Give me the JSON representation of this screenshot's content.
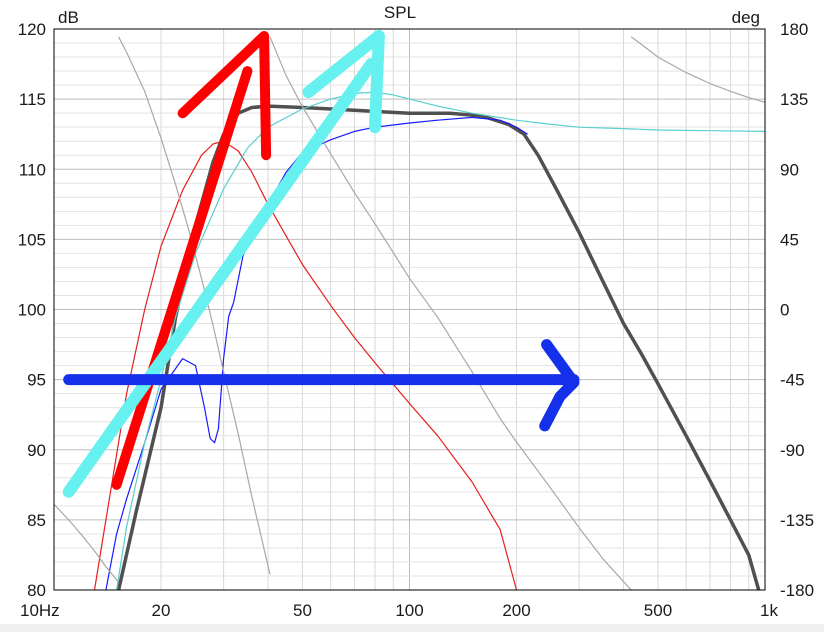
{
  "chart_data": {
    "type": "line",
    "title": "SPL",
    "ylabel": "dB",
    "y2label": "deg",
    "x_scale": "log",
    "xlim": [
      10,
      1000
    ],
    "ylim": [
      80,
      120
    ],
    "y2lim": [
      -180,
      180
    ],
    "grid": true,
    "x_ticks": [
      {
        "value": 10,
        "label": "10Hz"
      },
      {
        "value": 20,
        "label": "20"
      },
      {
        "value": 50,
        "label": "50"
      },
      {
        "value": 100,
        "label": "100"
      },
      {
        "value": 200,
        "label": "200"
      },
      {
        "value": 500,
        "label": "500"
      },
      {
        "value": 1000,
        "label": "1k"
      }
    ],
    "y_ticks": [
      80,
      85,
      90,
      95,
      100,
      105,
      110,
      115,
      120
    ],
    "y2_ticks": [
      -180,
      -135,
      -90,
      -45,
      0,
      45,
      90,
      135,
      180
    ],
    "series": [
      {
        "color": "#505050",
        "width": 3.5,
        "axis": "y",
        "x": [
          15.2,
          17,
          20,
          22,
          25,
          28,
          30,
          33,
          36,
          40,
          50,
          70,
          100,
          130,
          160,
          190,
          210,
          230,
          260,
          300,
          350,
          400,
          450,
          500,
          600,
          700,
          800,
          900,
          960
        ],
        "y": [
          80,
          85.5,
          93,
          99.5,
          106,
          110.5,
          112.5,
          114,
          114.4,
          114.5,
          114.4,
          114.2,
          114,
          114,
          113.8,
          113.2,
          112.5,
          111,
          108.5,
          105.5,
          102,
          99,
          96.8,
          94.7,
          91,
          87.8,
          85,
          82.5,
          80
        ]
      },
      {
        "color": "#e61e1e",
        "width": 1.2,
        "axis": "y",
        "x": [
          13,
          14,
          16,
          18,
          20,
          23,
          26,
          28,
          30,
          33,
          36,
          40,
          50,
          60,
          70,
          80,
          100,
          120,
          150,
          180,
          200
        ],
        "y": [
          80,
          85,
          94,
          100,
          104.5,
          108.5,
          111,
          111.8,
          112,
          111.3,
          109.8,
          107.5,
          103.2,
          100.3,
          98,
          96.2,
          93.3,
          91,
          87.7,
          84.3,
          80
        ]
      },
      {
        "color": "#1a1aff",
        "width": 1.2,
        "axis": "y",
        "x": [
          14,
          15,
          16,
          18,
          20,
          23,
          25,
          26.5,
          27.5,
          28.3,
          29,
          30,
          31,
          32,
          34,
          37,
          40,
          45,
          50,
          60,
          70,
          80,
          100,
          120,
          150,
          180,
          200,
          215
        ],
        "y": [
          80,
          84,
          86.5,
          90.5,
          94.3,
          96.5,
          96,
          93,
          90.8,
          90.5,
          91.5,
          96.5,
          99.5,
          100.5,
          103.8,
          106,
          107.5,
          109.8,
          111.2,
          112.1,
          112.7,
          113.0,
          113.3,
          113.5,
          113.7,
          113.5,
          113.0,
          112.5
        ]
      },
      {
        "color": "#5ccfcf",
        "width": 1.2,
        "axis": "y",
        "x": [
          15,
          16,
          18,
          20,
          22,
          25,
          30,
          35,
          40,
          50,
          60,
          70,
          80,
          90,
          100,
          120,
          150,
          200,
          250,
          300,
          400,
          500,
          700,
          1000
        ],
        "y": [
          80,
          84.5,
          90.5,
          95,
          99.5,
          104,
          108.6,
          111.5,
          113,
          114.3,
          115,
          115.4,
          115.5,
          115.3,
          115.0,
          114.5,
          114.0,
          113.5,
          113.2,
          113.0,
          112.9,
          112.8,
          112.75,
          112.7
        ]
      },
      {
        "color": "#a8a8a8",
        "width": 1.2,
        "axis": "y2",
        "x": [
          10,
          11,
          12,
          13,
          14,
          15.2
        ],
        "y": [
          -125,
          -135,
          -145,
          -155,
          -165,
          -175
        ]
      },
      {
        "color": "#a8a8a8",
        "width": 1.2,
        "axis": "y2",
        "x": [
          15.2,
          16,
          18,
          20,
          22,
          24,
          26,
          28,
          30,
          33,
          36,
          40.5
        ],
        "y": [
          175,
          165,
          140,
          110,
          80,
          50,
          20,
          -10,
          -40,
          -80,
          -120,
          -170
        ]
      },
      {
        "color": "#a8a8a8",
        "width": 1.2,
        "axis": "y2",
        "x": [
          40.5,
          45,
          50,
          60,
          70,
          80,
          100,
          120,
          150,
          180,
          200,
          250,
          300,
          350,
          420
        ],
        "y": [
          175,
          150,
          130,
          100,
          75,
          55,
          20,
          -5,
          -40,
          -70,
          -85,
          -115,
          -140,
          -160,
          -180
        ]
      },
      {
        "color": "#a8a8a8",
        "width": 1.2,
        "axis": "y2",
        "x": [
          420,
          450,
          500,
          600,
          700,
          800,
          900,
          1000
        ],
        "y": [
          175,
          170,
          162,
          152,
          145,
          140,
          136,
          133
        ]
      }
    ],
    "annotations": [
      {
        "type": "stroke",
        "color": "#ff0000",
        "width": 10,
        "x": [
          15,
          35
        ],
        "y": [
          87.5,
          117
        ]
      },
      {
        "type": "stroke",
        "color": "#ff0000",
        "width": 10,
        "x": [
          23,
          39,
          39.5
        ],
        "y": [
          114,
          119.5,
          111
        ]
      },
      {
        "type": "stroke",
        "color": "#66f0f0",
        "width": 12,
        "x": [
          11,
          78
        ],
        "y": [
          87,
          117.5
        ]
      },
      {
        "type": "stroke",
        "color": "#66f0f0",
        "width": 12,
        "x": [
          52,
          82,
          80
        ],
        "y": [
          115.5,
          119.5,
          113
        ]
      },
      {
        "type": "stroke",
        "color": "#1430ea",
        "width": 11,
        "x": [
          11,
          290
        ],
        "y": [
          95,
          95
        ]
      },
      {
        "type": "stroke",
        "color": "#1430ea",
        "width": 11,
        "x": [
          243,
          290,
          265,
          240
        ],
        "y": [
          97.5,
          94.8,
          93.8,
          91.7
        ]
      }
    ]
  }
}
